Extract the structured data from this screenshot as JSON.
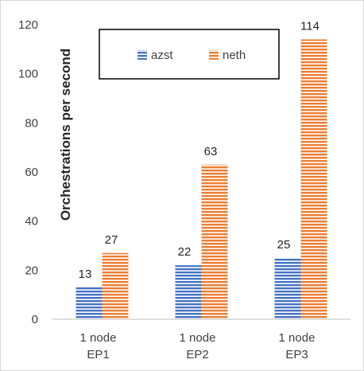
{
  "chart_data": {
    "type": "bar",
    "categories": [
      [
        "1 node",
        "EP1"
      ],
      [
        "1 node",
        "EP2"
      ],
      [
        "1 node",
        "EP3"
      ]
    ],
    "series": [
      {
        "name": "azst",
        "values": [
          13,
          22,
          25
        ],
        "color": "#4472c4"
      },
      {
        "name": "neth",
        "values": [
          27,
          63,
          114
        ],
        "color": "#ed7d31"
      }
    ],
    "ylabel": "Orchestrations per second",
    "ylim": [
      0,
      120
    ],
    "yticks": [
      0,
      20,
      40,
      60,
      80,
      100,
      120
    ],
    "grid": false,
    "legend": "top-center",
    "bar_pattern": "horizontal-stripes"
  }
}
